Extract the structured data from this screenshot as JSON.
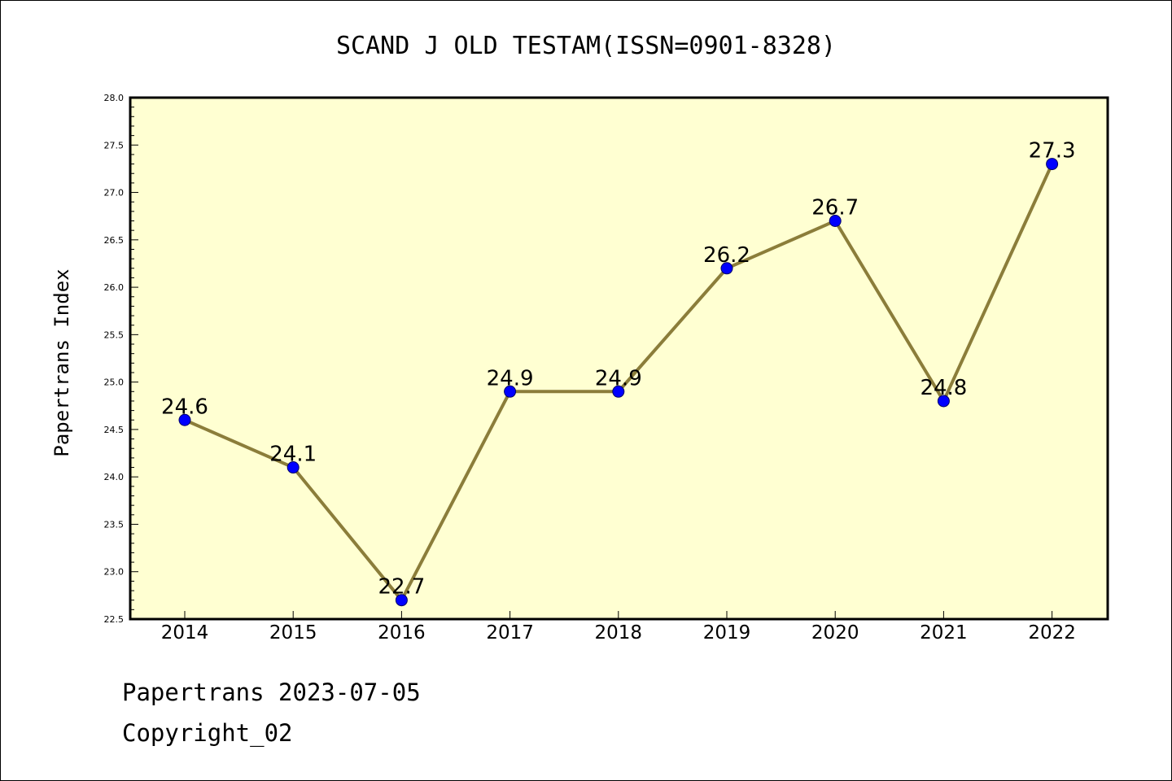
{
  "chart_data": {
    "type": "line",
    "title": "SCAND J OLD TESTAM(ISSN=0901-8328)",
    "ylabel": "Papertrans Index",
    "xlabel": "",
    "categories": [
      "2014",
      "2015",
      "2016",
      "2017",
      "2018",
      "2019",
      "2020",
      "2021",
      "2022"
    ],
    "values": [
      24.6,
      24.1,
      22.7,
      24.9,
      24.9,
      26.2,
      26.7,
      24.8,
      27.3
    ],
    "data_labels": [
      "24.6",
      "24.1",
      "22.7",
      "24.9",
      "24.9",
      "26.2",
      "26.7",
      "24.8",
      "27.3"
    ],
    "ylim": [
      22.5,
      28.0
    ],
    "yticks": [
      "22.5",
      "23.0",
      "23.5",
      "24.0",
      "24.5",
      "25.0",
      "25.5",
      "26.0",
      "26.5",
      "27.0",
      "27.5",
      "28.0"
    ],
    "grid": false,
    "colors": {
      "line": "#8b7d3a",
      "marker": "#0000ff",
      "plot_bg": "#ffffd2"
    }
  },
  "footer": {
    "source": "Papertrans 2023-07-05",
    "copyright": "Copyright_02"
  }
}
